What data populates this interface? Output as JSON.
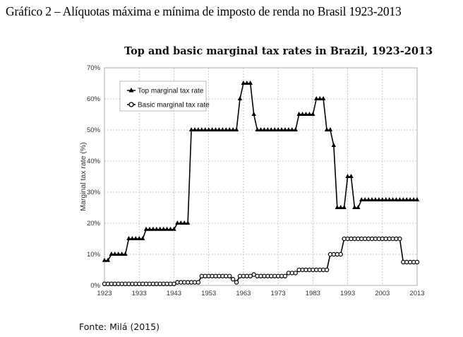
{
  "document": {
    "caption": "Gráfico 2 – Alíquotas máxima e mínima de imposto de renda no Brasil 1923-2013",
    "source": "Fonte: Milá (2015)"
  },
  "chart_data": {
    "type": "line",
    "title": "Top and basic marginal tax rates in Brazil, 1923-2013",
    "xlabel": "",
    "ylabel": "Marginal tax rate (%)",
    "xlim": [
      1923,
      2013
    ],
    "ylim": [
      0,
      70
    ],
    "x_ticks": [
      "1923",
      "1933",
      "1943",
      "1953",
      "1963",
      "1973",
      "1983",
      "1993",
      "2003",
      "2013"
    ],
    "y_ticks": [
      "0%",
      "10%",
      "20%",
      "30%",
      "40%",
      "50%",
      "60%",
      "70%"
    ],
    "grid": true,
    "legend_position": "upper left",
    "x": [
      1923,
      1924,
      1925,
      1926,
      1927,
      1928,
      1929,
      1930,
      1931,
      1932,
      1933,
      1934,
      1935,
      1936,
      1937,
      1938,
      1939,
      1940,
      1941,
      1942,
      1943,
      1944,
      1945,
      1946,
      1947,
      1948,
      1949,
      1950,
      1951,
      1952,
      1953,
      1954,
      1955,
      1956,
      1957,
      1958,
      1959,
      1960,
      1961,
      1962,
      1963,
      1964,
      1965,
      1966,
      1967,
      1968,
      1969,
      1970,
      1971,
      1972,
      1973,
      1974,
      1975,
      1976,
      1977,
      1978,
      1979,
      1980,
      1981,
      1982,
      1983,
      1984,
      1985,
      1986,
      1987,
      1988,
      1989,
      1990,
      1991,
      1992,
      1993,
      1994,
      1995,
      1996,
      1997,
      1998,
      1999,
      2000,
      2001,
      2002,
      2003,
      2004,
      2005,
      2006,
      2007,
      2008,
      2009,
      2010,
      2011,
      2012,
      2013
    ],
    "series": [
      {
        "name": "Top marginal tax rate",
        "marker": "filled-triangle",
        "values": [
          8,
          8,
          10,
          10,
          10,
          10,
          10,
          15,
          15,
          15,
          15,
          15,
          18,
          18,
          18,
          18,
          18,
          18,
          18,
          18,
          18,
          20,
          20,
          20,
          20,
          50,
          50,
          50,
          50,
          50,
          50,
          50,
          50,
          50,
          50,
          50,
          50,
          50,
          50,
          60,
          65,
          65,
          65,
          55,
          50,
          50,
          50,
          50,
          50,
          50,
          50,
          50,
          50,
          50,
          50,
          50,
          55,
          55,
          55,
          55,
          55,
          60,
          60,
          60,
          50,
          50,
          45,
          25,
          25,
          25,
          35,
          35,
          25,
          25,
          27.5,
          27.5,
          27.5,
          27.5,
          27.5,
          27.5,
          27.5,
          27.5,
          27.5,
          27.5,
          27.5,
          27.5,
          27.5,
          27.5,
          27.5,
          27.5,
          27.5
        ]
      },
      {
        "name": "Basic marginal tax rate",
        "marker": "hollow-circle",
        "values": [
          0.5,
          0.5,
          0.5,
          0.5,
          0.5,
          0.5,
          0.5,
          0.5,
          0.5,
          0.5,
          0.5,
          0.5,
          0.5,
          0.5,
          0.5,
          0.5,
          0.5,
          0.5,
          0.5,
          0.5,
          0.5,
          1,
          1,
          1,
          1,
          1,
          1,
          1,
          3,
          3,
          3,
          3,
          3,
          3,
          3,
          3,
          3,
          2,
          1,
          3,
          3,
          3,
          3,
          3.5,
          3,
          3,
          3,
          3,
          3,
          3,
          3,
          3,
          3,
          4,
          4,
          4,
          5,
          5,
          5,
          5,
          5,
          5,
          5,
          5,
          5,
          10,
          10,
          10,
          10,
          15,
          15,
          15,
          15,
          15,
          15,
          15,
          15,
          15,
          15,
          15,
          15,
          15,
          15,
          15,
          15,
          15,
          7.5,
          7.5,
          7.5,
          7.5,
          7.5
        ]
      }
    ]
  }
}
